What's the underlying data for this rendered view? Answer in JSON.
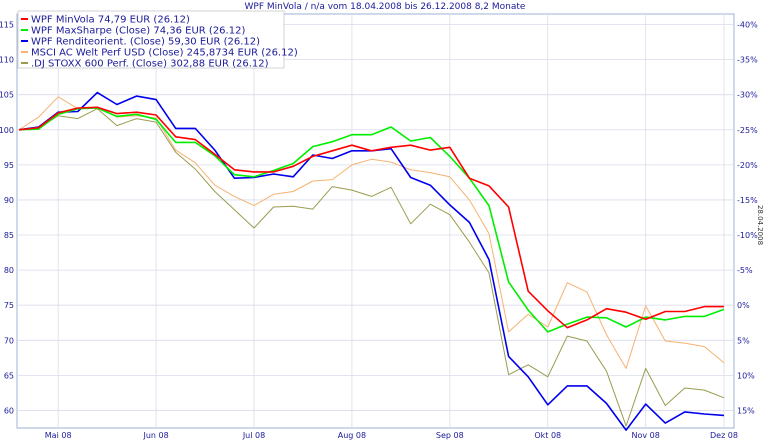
{
  "chart_data": {
    "type": "line",
    "title": "WPF MinVola / n/a vom 18.04.2008 bis 26.12.2008 8,2 Monate",
    "side_note": "28.04.2008",
    "x": [
      "18.04",
      "25.04",
      "02.05",
      "09.05",
      "16.05",
      "23.05",
      "30.05",
      "06.06",
      "13.06",
      "20.06",
      "27.06",
      "04.07",
      "11.07",
      "18.07",
      "25.07",
      "01.08",
      "08.08",
      "15.08",
      "22.08",
      "29.08",
      "05.09",
      "12.09",
      "19.09",
      "26.09",
      "03.10",
      "10.10",
      "17.10",
      "24.10",
      "31.10",
      "07.11",
      "14.11",
      "21.11",
      "28.11",
      "05.12",
      "12.12",
      "19.12",
      "26.12"
    ],
    "x_tick_labels": [
      "Mai 08",
      "Jun 08",
      "Jul 08",
      "Aug 08",
      "Sep 08",
      "Okt 08",
      "Nov 08",
      "Dez 08"
    ],
    "x_tick_positions": [
      2,
      7,
      12,
      17,
      22,
      27,
      32,
      36
    ],
    "y_left_ticks": [
      60,
      65,
      70,
      75,
      80,
      85,
      90,
      95,
      100,
      105,
      110,
      115
    ],
    "y_right_ticks": [
      "15%",
      "10%",
      "5%",
      "0%",
      "-5%",
      "-10%",
      "-15%",
      "-20%",
      "-25%",
      "-30%",
      "-35%",
      "-40%"
    ],
    "ylim": [
      57.5,
      116.5
    ],
    "grid": true,
    "legend_position": "top-left",
    "series": [
      {
        "name": "WPF MinVola 74,79 EUR (26.12)",
        "color": "#ff0000",
        "width": 1.6,
        "values": [
          100,
          100.3,
          102.4,
          103.1,
          103.2,
          102.3,
          102.5,
          102.1,
          99,
          98.6,
          96.5,
          94.3,
          94,
          94,
          94.8,
          96.2,
          97,
          97.8,
          97,
          97.5,
          97.8,
          97.1,
          97.5,
          93.1,
          92,
          89,
          77,
          74.2,
          71.8,
          72.9,
          74.5,
          74,
          73,
          74.1,
          74.1,
          74.8,
          74.8
        ]
      },
      {
        "name": "WPF MaxSharpe (Close) 74,36 EUR (26.12)",
        "color": "#00ee00",
        "width": 1.6,
        "values": [
          100,
          100.1,
          102.2,
          103,
          103.1,
          101.9,
          102.2,
          101.5,
          98.2,
          98.2,
          96.3,
          93.6,
          93.3,
          94.2,
          95.2,
          97.6,
          98.3,
          99.3,
          99.3,
          100.4,
          98.4,
          98.9,
          96.2,
          93.1,
          89.2,
          78.3,
          74.3,
          71.2,
          72.3,
          73.3,
          73.2,
          71.9,
          73.3,
          72.9,
          73.4,
          73.4,
          74.4
        ]
      },
      {
        "name": "WPF Renditeorient. (Close) 59,30 EUR (26.12)",
        "color": "#0000ee",
        "width": 1.6,
        "values": [
          100,
          100.4,
          102.5,
          102.6,
          105.3,
          103.6,
          104.8,
          104.3,
          100.2,
          100.2,
          97.1,
          93.1,
          93.2,
          93.7,
          93.3,
          96.4,
          95.9,
          97,
          97,
          97.3,
          93.2,
          92.1,
          89.3,
          86.8,
          81.5,
          67.7,
          64.8,
          60.8,
          63.5,
          63.5,
          61,
          57.2,
          60.9,
          58.2,
          59.8,
          59.5,
          59.3
        ]
      },
      {
        "name": "MSCI AC Welt Perf USD (Close) 245,8734 EUR (26.12)",
        "color": "#f5b271",
        "width": 1,
        "values": [
          100,
          101.8,
          104.7,
          103,
          103.2,
          101.8,
          102,
          101.7,
          97.1,
          95.3,
          92.1,
          90.5,
          89.2,
          90.8,
          91.2,
          92.7,
          92.9,
          95,
          95.8,
          95.4,
          94.3,
          93.9,
          93.3,
          90,
          85.2,
          71.2,
          73.7,
          71.9,
          78.2,
          76.9,
          70.8,
          66,
          74.9,
          69.9,
          69.6,
          69.1,
          66.8
        ]
      },
      {
        "name": ".DJ STOXX 600 Perf. (Close) 302,88 EUR (26.12)",
        "color": "#9b9b50",
        "width": 1,
        "values": [
          100,
          100.2,
          102,
          101.6,
          103,
          100.6,
          101.6,
          101.1,
          96.8,
          94.4,
          91.2,
          88.6,
          86,
          89,
          89.1,
          88.7,
          91.9,
          91.4,
          90.5,
          91.8,
          86.6,
          89.4,
          87.9,
          84,
          79.6,
          65.1,
          66.5,
          64.8,
          70.6,
          69.9,
          65.6,
          57.8,
          66,
          60.7,
          63.2,
          62.9,
          61.8
        ]
      }
    ]
  }
}
